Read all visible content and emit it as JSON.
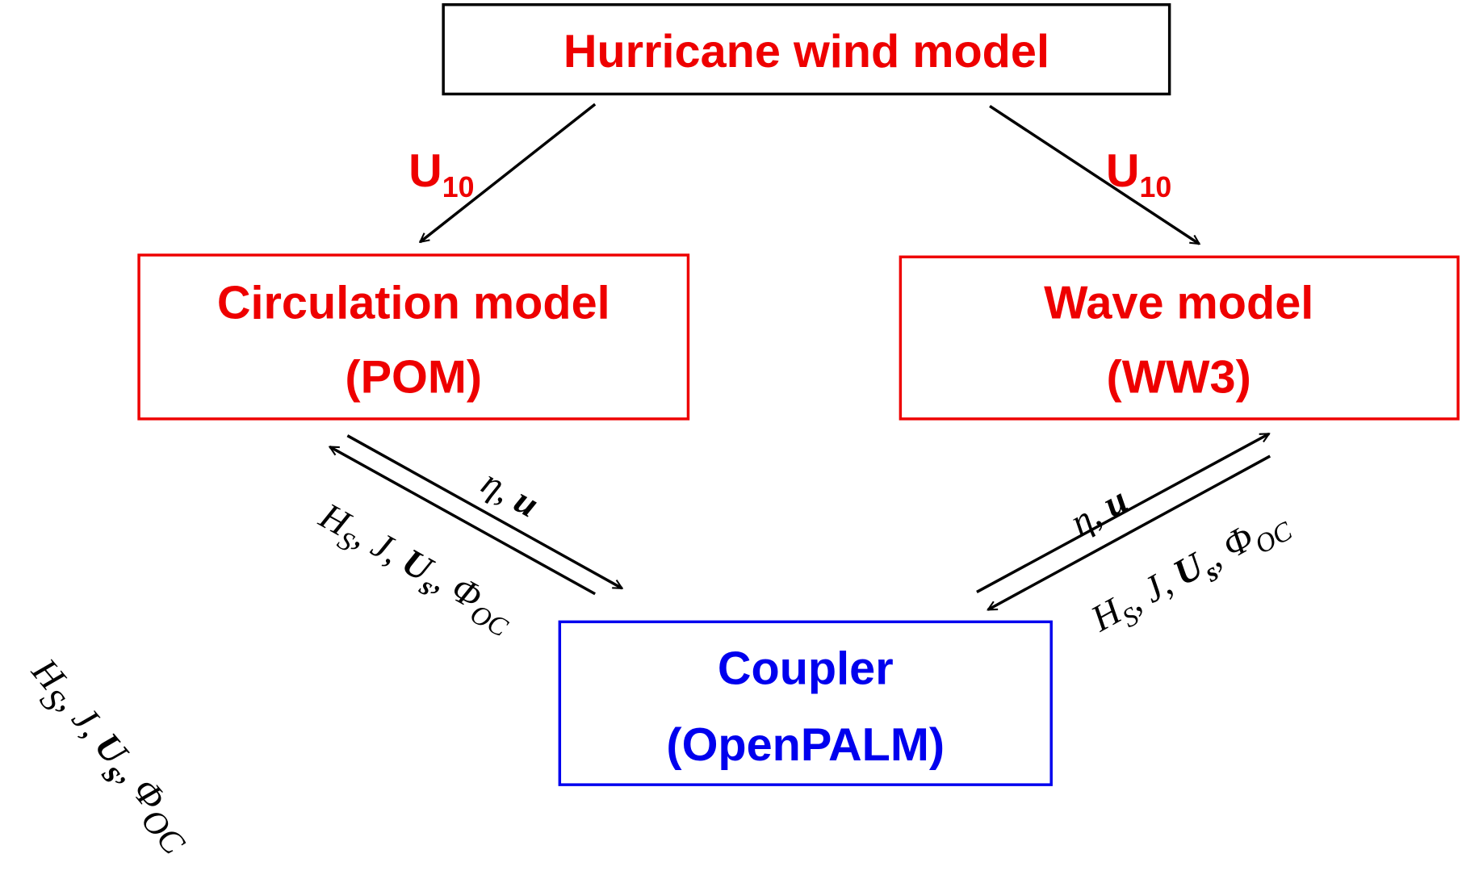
{
  "nodes": [
    {
      "lines": [
        "Hurricane wind model"
      ]
    },
    {
      "lines": [
        "Circulation model",
        "(POM)"
      ]
    },
    {
      "lines": [
        "Wave model",
        "(WW3)"
      ]
    },
    {
      "lines": [
        "Coupler",
        "(OpenPALM)"
      ]
    }
  ],
  "labels": [
    {
      "segments": [
        {
          "text": "U",
          "sub": "10"
        }
      ]
    },
    {
      "segments": [
        {
          "text": "U",
          "sub": "10"
        }
      ]
    },
    {
      "segments": [
        {
          "text": "η, "
        },
        {
          "text": "u",
          "bold": true
        }
      ]
    },
    {
      "segments": [
        {
          "text": "H",
          "sub": "S"
        },
        {
          "text": ", J, "
        },
        {
          "text": "U",
          "sub": "s",
          "bold": true
        },
        {
          "text": ", Φ",
          "sub": "OC"
        }
      ]
    },
    {
      "segments": [
        {
          "text": "η, "
        },
        {
          "text": "u",
          "bold": true
        }
      ]
    },
    {
      "segments": [
        {
          "text": "H",
          "sub": "S"
        },
        {
          "text": ", J, "
        },
        {
          "text": "U",
          "sub": "s",
          "bold": true
        },
        {
          "text": ", Φ",
          "sub": "OC"
        }
      ]
    },
    {
      "segments": [
        {
          "text": "H",
          "sub": "S"
        },
        {
          "text": ", J, "
        },
        {
          "text": "U",
          "sub": "s",
          "bold": true
        },
        {
          "text": ", Φ",
          "sub": "OC"
        }
      ]
    }
  ]
}
